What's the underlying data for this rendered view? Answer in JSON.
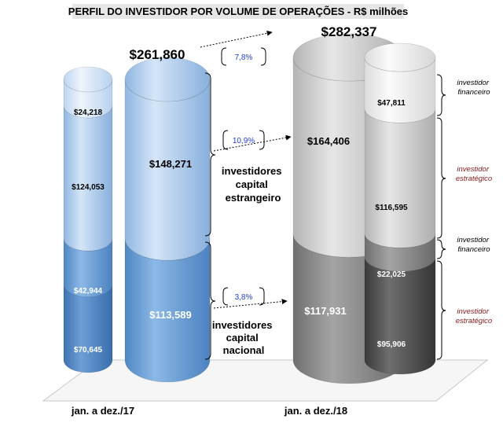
{
  "title": "PERFIL DO INVESTIDOR POR VOLUME DE OPERAÇÕES - R$ milhões",
  "chart_data": {
    "type": "bar",
    "style": "3d-cylinder-stacked",
    "categories": [
      "jan. a dez./17",
      "jan. a dez./18"
    ],
    "totals": [
      "$261,860",
      "$282,337"
    ],
    "totals_values": [
      261860,
      282337
    ],
    "groups": [
      {
        "name": "investidores capital estrangeiro",
        "label_lines": [
          "investidores",
          "capital",
          "estrangeiro"
        ],
        "values": [
          148271,
          164406
        ],
        "labels": [
          "$148,271",
          "$164,406"
        ],
        "growth": "10,9%",
        "breakdown": [
          {
            "name": "investidor financeiro",
            "values": [
              24218,
              47811
            ],
            "labels": [
              "$24,218",
              "$47,811"
            ]
          },
          {
            "name": "investidor estratégico",
            "values": [
              124053,
              116595
            ],
            "labels": [
              "$124,053",
              "$116,595"
            ]
          }
        ]
      },
      {
        "name": "investidores capital nacional",
        "label_lines": [
          "investidores",
          "capital",
          "nacional"
        ],
        "values": [
          113589,
          117931
        ],
        "labels": [
          "$113,589",
          "$117,931"
        ],
        "growth": "3,8%",
        "breakdown": [
          {
            "name": "investidor financeiro",
            "values": [
              42944,
              22025
            ],
            "labels": [
              "$42,944",
              "$22,025"
            ]
          },
          {
            "name": "investidor estratégico",
            "values": [
              70645,
              95906
            ],
            "labels": [
              "$70,645",
              "$95,906"
            ]
          }
        ]
      }
    ],
    "total_growth": "7,8%",
    "legend": [
      {
        "lines": [
          "investidor",
          "financeiro"
        ],
        "color": "#000000"
      },
      {
        "lines": [
          "investidor",
          "estratégico"
        ],
        "color": "#8b1a1a"
      },
      {
        "lines": [
          "investidor",
          "financeiro"
        ],
        "color": "#000000"
      },
      {
        "lines": [
          "investidor",
          "estratégico"
        ],
        "color": "#8b1a1a"
      }
    ],
    "colors": {
      "y2017_foreign": "#a9c8ea",
      "y2017_national": "#6a9fd4",
      "y2018_foreign": "#c4c4c4",
      "y2018_national": "#7a7a7a",
      "growth_text": "#1f3fd8",
      "strategic_text": "#8b1a1a"
    }
  }
}
